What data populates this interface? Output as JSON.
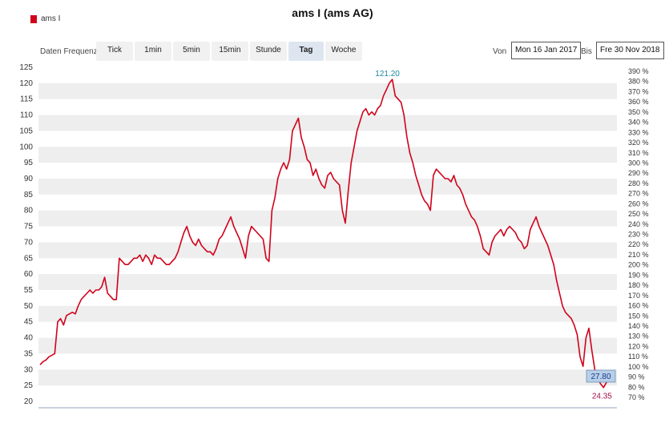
{
  "title": "ams I (ams AG)",
  "legend": {
    "label": "ams I",
    "color": "#d0021b"
  },
  "toolbar": {
    "frequency_label": "Daten Frequenz",
    "buttons": [
      {
        "label": "Tick",
        "active": false
      },
      {
        "label": "1min",
        "active": false
      },
      {
        "label": "5min",
        "active": false
      },
      {
        "label": "15min",
        "active": false
      },
      {
        "label": "Stunde",
        "active": false
      },
      {
        "label": "Tag",
        "active": true
      },
      {
        "label": "Woche",
        "active": false
      }
    ],
    "from_label": "Von",
    "from_value": "Mon 16 Jan 2017",
    "to_label": "Bis",
    "to_value": "Fre 30 Nov 2018"
  },
  "chart_data": {
    "type": "line",
    "series": [
      {
        "name": "ams I",
        "color": "#d0021b",
        "values": [
          31.5,
          32.5,
          33,
          34,
          34.5,
          35,
          45,
          46,
          44,
          47,
          47.5,
          48,
          47.5,
          50,
          52,
          53,
          54,
          55,
          54,
          55,
          55,
          56,
          59,
          54,
          53,
          52,
          52,
          65,
          64,
          63,
          63,
          64,
          65,
          65,
          66,
          64,
          66,
          65,
          63,
          66,
          65,
          65,
          64,
          63,
          63,
          64,
          65,
          67,
          70,
          73,
          75,
          72,
          70,
          69,
          71,
          69,
          68,
          67,
          67,
          66,
          68,
          71,
          72,
          74,
          76,
          78,
          75,
          73,
          71,
          68,
          65,
          72,
          75,
          74,
          73,
          72,
          71,
          65,
          64,
          80,
          84,
          90,
          93,
          95,
          93,
          96,
          105,
          107,
          109,
          103,
          100,
          96,
          95,
          91,
          93,
          90,
          88,
          87,
          91,
          92,
          90,
          89,
          88,
          80,
          76,
          86,
          95,
          100,
          105,
          108,
          111,
          112,
          110,
          111,
          110,
          112,
          113,
          116,
          118,
          120,
          121.2,
          116,
          115,
          114,
          110,
          103,
          98,
          95,
          91,
          88,
          85,
          83,
          82,
          80,
          91,
          93,
          92,
          91,
          90,
          90,
          89,
          91,
          88,
          87,
          85,
          82,
          80,
          78,
          77,
          75,
          72,
          68,
          67,
          66,
          70,
          72,
          73,
          74,
          72,
          74,
          75,
          74,
          73,
          71,
          70,
          68,
          69,
          74,
          76,
          78,
          75,
          73,
          71,
          69,
          66,
          63,
          58,
          54,
          50,
          48,
          47,
          46,
          44,
          41,
          34,
          31,
          40,
          43,
          36,
          30,
          27,
          25.5,
          24.35,
          26,
          27.8,
          28.8,
          27.8
        ]
      }
    ],
    "ylim": [
      20,
      125
    ],
    "yticks": [
      20,
      25,
      30,
      35,
      40,
      45,
      50,
      55,
      60,
      65,
      70,
      75,
      80,
      85,
      90,
      95,
      100,
      105,
      110,
      115,
      120,
      125
    ],
    "y2ticks": [
      "70 %",
      "80 %",
      "90 %",
      "100 %",
      "110 %",
      "120 %",
      "130 %",
      "140 %",
      "150 %",
      "160 %",
      "170 %",
      "180 %",
      "190 %",
      "200 %",
      "210 %",
      "220 %",
      "230 %",
      "240 %",
      "250 %",
      "260 %",
      "270 %",
      "280 %",
      "290 %",
      "300 %",
      "310 %",
      "320 %",
      "330 %",
      "340 %",
      "350 %",
      "360 %",
      "370 %",
      "380 %",
      "390 %"
    ],
    "y2lim": [
      70,
      390
    ],
    "max_label": "121.20",
    "min_label": "24.35",
    "last_label": "27.80",
    "grid": true,
    "colors": {
      "band": "#eeeeee",
      "max": "#1a8aa0",
      "min": "#a4134b",
      "last_box": "#b8cfe8"
    }
  }
}
